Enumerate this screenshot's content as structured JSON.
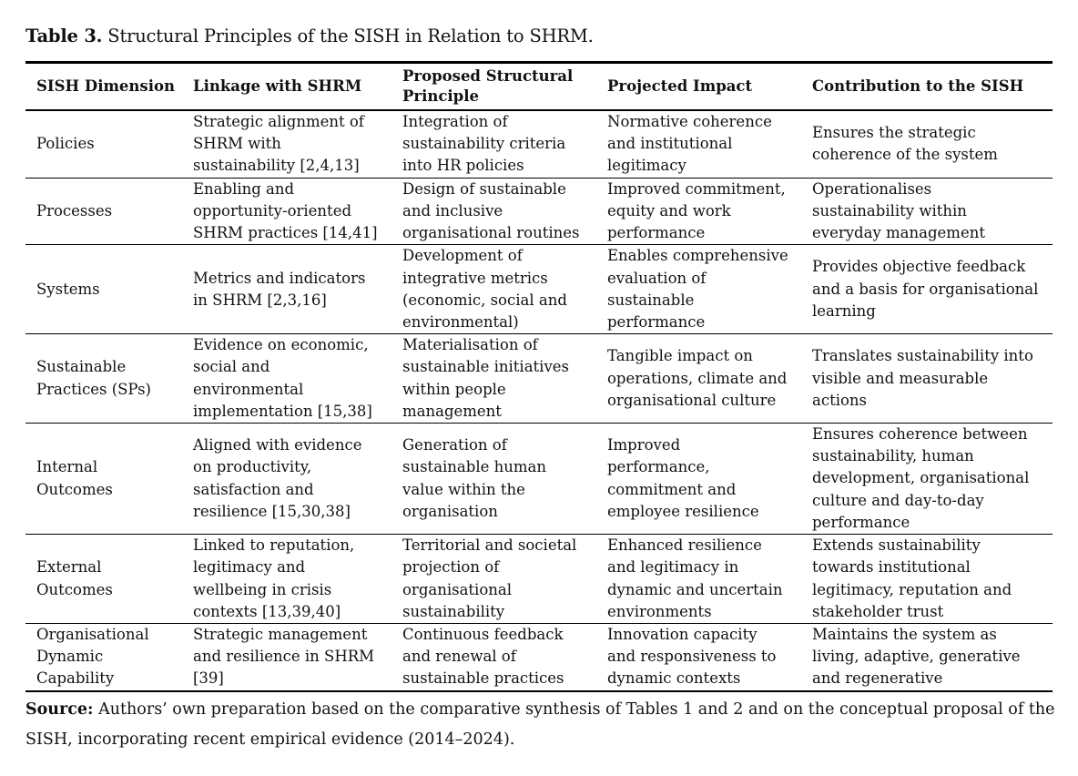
{
  "caption": {
    "label": "Table 3.",
    "text": " Structural Principles of the SISH in Relation to SHRM."
  },
  "headers": [
    "SISH Dimension",
    "Linkage with SHRM",
    "Proposed Structural\nPrinciple",
    "Projected Impact",
    "Contribution to the SISH"
  ],
  "rows": [
    [
      "Policies",
      "Strategic alignment of\nSHRM with\nsustainability [2,4,13]",
      "Integration of\nsustainability criteria\ninto HR policies",
      "Normative coherence\nand institutional\nlegitimacy",
      "Ensures the strategic\ncoherence of the system"
    ],
    [
      "Processes",
      "Enabling and\nopportunity-oriented\nSHRM practices [14,41]",
      "Design of sustainable\nand inclusive\norganisational routines",
      "Improved commitment,\nequity and work\nperformance",
      "Operationalises\nsustainability within\neveryday management"
    ],
    [
      "Systems",
      "Metrics and indicators\nin SHRM [2,3,16]",
      "Development of\nintegrative metrics\n(economic, social and\nenvironmental)",
      "Enables comprehensive\nevaluation of\nsustainable\nperformance",
      "Provides objective feedback\nand a basis for organisational\nlearning"
    ],
    [
      "Sustainable\nPractices (SPs)",
      "Evidence on economic,\nsocial and\nenvironmental\nimplementation [15,38]",
      "Materialisation of\nsustainable initiatives\nwithin people\nmanagement",
      "Tangible impact on\noperations, climate and\norganisational culture",
      "Translates sustainability into\nvisible and measurable\nactions"
    ],
    [
      "Internal\nOutcomes",
      "Aligned with evidence\non productivity,\nsatisfaction and\nresilience [15,30,38]",
      "Generation of\nsustainable human\nvalue within the\norganisation",
      "Improved\nperformance,\ncommitment and\nemployee resilience",
      "Ensures coherence between\nsustainability, human\ndevelopment, organisational\nculture and day-to-day\nperformance"
    ],
    [
      "External\nOutcomes",
      "Linked to reputation,\nlegitimacy and\nwellbeing in crisis\ncontexts [13,39,40]",
      "Territorial and societal\nprojection of\norganisational\nsustainability",
      "Enhanced resilience\nand legitimacy in\ndynamic and uncertain\nenvironments",
      "Extends sustainability\ntowards institutional\nlegitimacy, reputation and\nstakeholder trust"
    ],
    [
      "Organisational\nDynamic\nCapability",
      "Strategic management\nand resilience in SHRM\n[39]",
      "Continuous feedback\nand renewal of\nsustainable practices",
      "Innovation capacity\nand responsiveness to\ndynamic contexts",
      "Maintains the system as\nliving, adaptive, generative\nand regenerative"
    ]
  ],
  "source": {
    "label": "Source:",
    "text": " Authors’ own preparation based on the comparative synthesis of Tables 1 and 2 and on the conceptual proposal of the SISH, incorporating recent empirical evidence (2014–2024)."
  }
}
